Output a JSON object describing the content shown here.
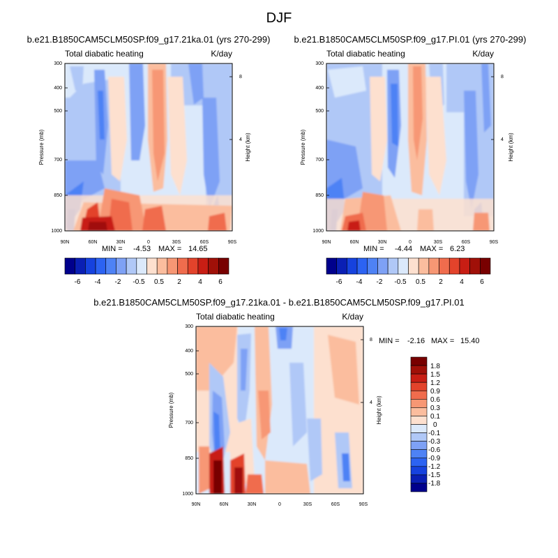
{
  "page_title": "DJF",
  "chart_data": [
    {
      "type": "heatmap",
      "id": "p1",
      "title": "b.e21.B1850CAM5CLM50SP.f09_g17.21ka.01 (yrs 270-299)",
      "left_label": "Total diabatic heating",
      "right_label": "K/day",
      "xlabel": "",
      "ylabel": "Pressure (mb)",
      "ylabel_right": "Height (km)",
      "x_ticks": [
        "90N",
        "60N",
        "30N",
        "0",
        "30S",
        "60S",
        "90S"
      ],
      "y_ticks": [
        "300",
        "400",
        "500",
        "700",
        "850",
        "1000"
      ],
      "height_ticks": [
        "8",
        "4"
      ],
      "min_label": "MIN =",
      "min_value": "-4.53",
      "max_label": "MAX =",
      "max_value": "14.65",
      "colorbar_labels": [
        "-6",
        "-4",
        "-2",
        "-0.5",
        "0.5",
        "2",
        "4",
        "6"
      ]
    },
    {
      "type": "heatmap",
      "id": "p2",
      "title": "b.e21.B1850CAM5CLM50SP.f09_g17.PI.01 (yrs 270-299)",
      "left_label": "Total diabatic heating",
      "right_label": "K/day",
      "xlabel": "",
      "ylabel": "Pressure (mb)",
      "ylabel_right": "Height (km)",
      "x_ticks": [
        "90N",
        "60N",
        "30N",
        "0",
        "30S",
        "60S",
        "90S"
      ],
      "y_ticks": [
        "300",
        "400",
        "500",
        "700",
        "850",
        "1000"
      ],
      "height_ticks": [
        "8",
        "4"
      ],
      "min_label": "MIN =",
      "min_value": "-4.44",
      "max_label": "MAX =",
      "max_value": "6.23",
      "colorbar_labels": [
        "-6",
        "-4",
        "-2",
        "-0.5",
        "0.5",
        "2",
        "4",
        "6"
      ]
    },
    {
      "type": "heatmap",
      "id": "p3",
      "title": "b.e21.B1850CAM5CLM50SP.f09_g17.21ka.01 - b.e21.B1850CAM5CLM50SP.f09_g17.PI.01",
      "left_label": "Total diabatic heating",
      "right_label": "K/day",
      "xlabel": "",
      "ylabel": "Pressure (mb)",
      "ylabel_right": "Height (km)",
      "x_ticks": [
        "90N",
        "60N",
        "30N",
        "0",
        "30S",
        "60S",
        "90S"
      ],
      "y_ticks": [
        "300",
        "400",
        "500",
        "700",
        "850",
        "1000"
      ],
      "height_ticks": [
        "8",
        "4"
      ],
      "min_label": "MIN =",
      "min_value": "-2.16",
      "max_label": "MAX =",
      "max_value": "15.40",
      "colorbar_labels": [
        "1.8",
        "1.5",
        "1.2",
        "0.9",
        "0.6",
        "0.3",
        "0.1",
        "0",
        "-0.1",
        "-0.3",
        "-0.6",
        "-0.9",
        "-1.2",
        "-1.5",
        "-1.8"
      ]
    }
  ],
  "colors": {
    "palette": [
      "#00008c",
      "#0a1fb4",
      "#1642de",
      "#2c63f2",
      "#4e82f5",
      "#7ea1f5",
      "#b0c8f7",
      "#dbe9fb",
      "#fde0cf",
      "#fbbd9e",
      "#f79774",
      "#f06c4d",
      "#e3432b",
      "#c81e14",
      "#a01008",
      "#780000"
    ],
    "axis": "#000000"
  }
}
